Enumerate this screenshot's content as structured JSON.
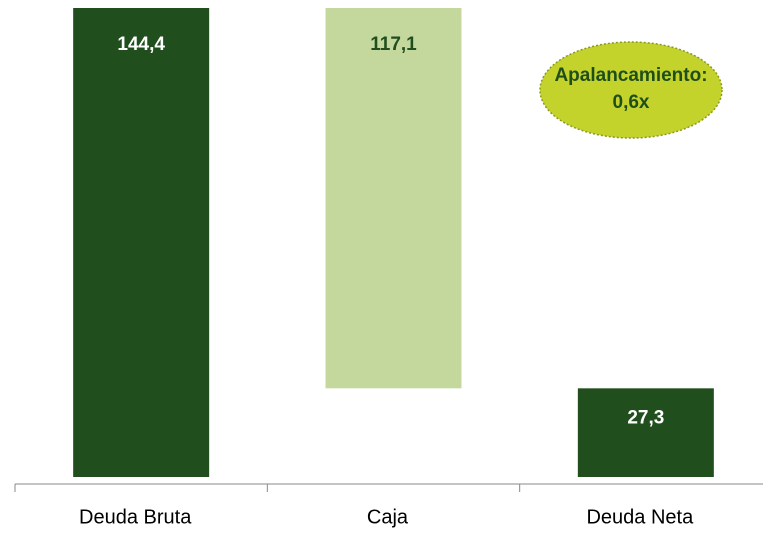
{
  "chart_data": {
    "type": "waterfall",
    "categories": [
      "Deuda Bruta",
      "Caja",
      "Deuda Neta"
    ],
    "values": [
      144.4,
      117.1,
      27.3
    ],
    "value_labels": [
      "144,4",
      "117,1",
      "27,3"
    ],
    "measures": [
      "total",
      "decrease",
      "total"
    ],
    "colors": [
      "#214e1d",
      "#c4d89e",
      "#214e1d"
    ],
    "label_colors": [
      "#ffffff",
      "#214e1d",
      "#ffffff"
    ],
    "annotation": [
      "Apalancamiento:",
      "0,6x"
    ],
    "annotation_color": "#c3d32c"
  }
}
